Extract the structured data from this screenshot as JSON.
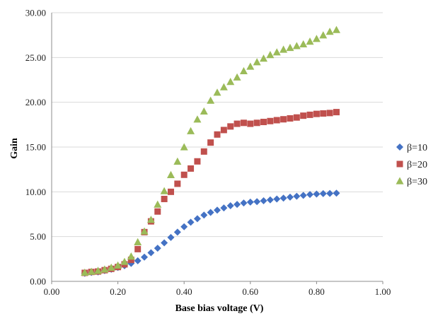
{
  "chart_data": {
    "type": "scatter",
    "title": "",
    "xlabel": "Base bias voltage (V)",
    "ylabel": "Gain",
    "xlim": [
      0,
      1
    ],
    "ylim": [
      0,
      30
    ],
    "x_ticks": [
      "0.00",
      "0.20",
      "0.40",
      "0.60",
      "0.80",
      "1.00"
    ],
    "y_ticks": [
      "0.00",
      "5.00",
      "10.00",
      "15.00",
      "20.00",
      "25.00",
      "30.00"
    ],
    "grid": "horizontal",
    "legend_position": "right",
    "x": [
      0.1,
      0.12,
      0.14,
      0.16,
      0.18,
      0.2,
      0.22,
      0.24,
      0.26,
      0.28,
      0.3,
      0.32,
      0.34,
      0.36,
      0.38,
      0.4,
      0.42,
      0.44,
      0.46,
      0.48,
      0.5,
      0.52,
      0.54,
      0.56,
      0.58,
      0.6,
      0.62,
      0.64,
      0.66,
      0.68,
      0.7,
      0.72,
      0.74,
      0.76,
      0.78,
      0.8,
      0.82,
      0.84,
      0.86
    ],
    "series": [
      {
        "name": "β=10",
        "marker": "diamond",
        "color": "#4472c4",
        "values": [
          0.9,
          1.0,
          1.05,
          1.2,
          1.35,
          1.55,
          1.75,
          2.0,
          2.3,
          2.7,
          3.2,
          3.7,
          4.3,
          4.9,
          5.5,
          6.1,
          6.6,
          7.0,
          7.4,
          7.7,
          7.95,
          8.2,
          8.45,
          8.6,
          8.75,
          8.85,
          8.9,
          9.0,
          9.1,
          9.2,
          9.3,
          9.4,
          9.5,
          9.6,
          9.7,
          9.75,
          9.8,
          9.82,
          9.85
        ]
      },
      {
        "name": "β=20",
        "marker": "square",
        "color": "#c0504d",
        "values": [
          0.95,
          1.05,
          1.1,
          1.25,
          1.4,
          1.6,
          1.9,
          2.4,
          3.6,
          5.5,
          6.7,
          7.8,
          9.2,
          10.0,
          10.9,
          11.9,
          12.6,
          13.4,
          14.5,
          15.5,
          16.4,
          16.9,
          17.3,
          17.6,
          17.7,
          17.6,
          17.7,
          17.8,
          17.9,
          18.0,
          18.1,
          18.2,
          18.3,
          18.5,
          18.6,
          18.7,
          18.75,
          18.8,
          18.9
        ]
      },
      {
        "name": "β=30",
        "marker": "triangle",
        "color": "#9bbb59",
        "values": [
          1.0,
          1.1,
          1.2,
          1.35,
          1.55,
          1.8,
          2.2,
          2.8,
          4.4,
          5.6,
          6.9,
          8.6,
          10.1,
          11.9,
          13.4,
          15.0,
          16.8,
          18.1,
          19.0,
          20.2,
          21.1,
          21.7,
          22.3,
          22.8,
          23.5,
          24.0,
          24.5,
          24.9,
          25.3,
          25.6,
          25.9,
          26.1,
          26.3,
          26.5,
          26.8,
          27.1,
          27.5,
          27.9,
          28.1
        ]
      }
    ]
  }
}
